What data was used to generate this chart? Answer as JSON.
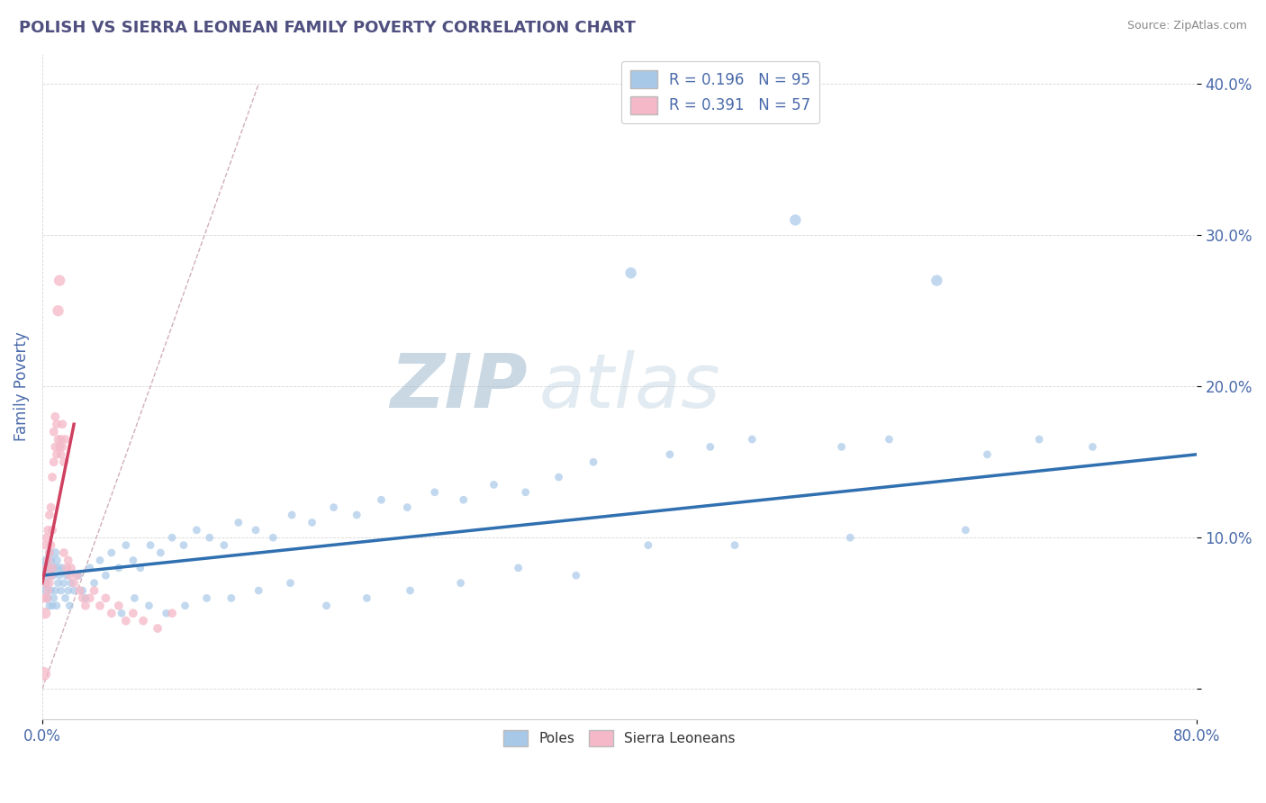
{
  "title": "POLISH VS SIERRA LEONEAN FAMILY POVERTY CORRELATION CHART",
  "source": "Source: ZipAtlas.com",
  "ylabel": "Family Poverty",
  "xlim": [
    0,
    0.8
  ],
  "ylim": [
    -0.02,
    0.42
  ],
  "yticks": [
    0.0,
    0.1,
    0.2,
    0.3,
    0.4
  ],
  "ytick_labels": [
    "",
    "10.0%",
    "20.0%",
    "30.0%",
    "40.0%"
  ],
  "blue_R": 0.196,
  "blue_N": 95,
  "pink_R": 0.391,
  "pink_N": 57,
  "blue_color": "#a8c8e8",
  "pink_color": "#f4b8c8",
  "blue_line_color": "#3070b0",
  "pink_line_color": "#d04060",
  "ref_line_color": "#d0b0b8",
  "title_color": "#505080",
  "axis_color": "#4a6aaa",
  "watermark_zip": "ZIP",
  "watermark_atlas": "atlas",
  "watermark_color": "#c8d8e8",
  "legend_label_blue": "Poles",
  "legend_label_pink": "Sierra Leoneans",
  "blue_x": [
    0.001,
    0.002,
    0.002,
    0.003,
    0.003,
    0.004,
    0.004,
    0.005,
    0.005,
    0.006,
    0.006,
    0.007,
    0.007,
    0.008,
    0.008,
    0.009,
    0.009,
    0.01,
    0.01,
    0.011,
    0.011,
    0.012,
    0.013,
    0.014,
    0.015,
    0.016,
    0.017,
    0.018,
    0.019,
    0.02,
    0.022,
    0.025,
    0.028,
    0.03,
    0.033,
    0.036,
    0.04,
    0.044,
    0.048,
    0.053,
    0.058,
    0.063,
    0.068,
    0.075,
    0.082,
    0.09,
    0.098,
    0.107,
    0.116,
    0.126,
    0.136,
    0.148,
    0.16,
    0.173,
    0.187,
    0.202,
    0.218,
    0.235,
    0.253,
    0.272,
    0.292,
    0.313,
    0.335,
    0.358,
    0.382,
    0.408,
    0.435,
    0.463,
    0.492,
    0.522,
    0.554,
    0.587,
    0.62,
    0.655,
    0.691,
    0.728,
    0.64,
    0.56,
    0.48,
    0.42,
    0.37,
    0.33,
    0.29,
    0.255,
    0.225,
    0.197,
    0.172,
    0.15,
    0.131,
    0.114,
    0.099,
    0.086,
    0.074,
    0.064,
    0.055
  ],
  "blue_y": [
    0.08,
    0.075,
    0.065,
    0.085,
    0.07,
    0.08,
    0.06,
    0.09,
    0.055,
    0.085,
    0.065,
    0.075,
    0.055,
    0.08,
    0.06,
    0.09,
    0.065,
    0.085,
    0.055,
    0.08,
    0.07,
    0.075,
    0.065,
    0.08,
    0.07,
    0.06,
    0.075,
    0.065,
    0.055,
    0.07,
    0.065,
    0.075,
    0.065,
    0.06,
    0.08,
    0.07,
    0.085,
    0.075,
    0.09,
    0.08,
    0.095,
    0.085,
    0.08,
    0.095,
    0.09,
    0.1,
    0.095,
    0.105,
    0.1,
    0.095,
    0.11,
    0.105,
    0.1,
    0.115,
    0.11,
    0.12,
    0.115,
    0.125,
    0.12,
    0.13,
    0.125,
    0.135,
    0.13,
    0.14,
    0.15,
    0.275,
    0.155,
    0.16,
    0.165,
    0.31,
    0.16,
    0.165,
    0.27,
    0.155,
    0.165,
    0.16,
    0.105,
    0.1,
    0.095,
    0.095,
    0.075,
    0.08,
    0.07,
    0.065,
    0.06,
    0.055,
    0.07,
    0.065,
    0.06,
    0.06,
    0.055,
    0.05,
    0.055,
    0.06,
    0.05
  ],
  "blue_sizes": [
    80,
    60,
    50,
    60,
    50,
    50,
    40,
    50,
    40,
    50,
    40,
    50,
    40,
    50,
    40,
    50,
    40,
    50,
    40,
    50,
    40,
    40,
    40,
    40,
    40,
    40,
    40,
    40,
    40,
    40,
    40,
    40,
    40,
    40,
    40,
    40,
    40,
    40,
    40,
    40,
    40,
    40,
    40,
    40,
    40,
    40,
    40,
    40,
    40,
    40,
    40,
    40,
    40,
    40,
    40,
    40,
    40,
    40,
    40,
    40,
    40,
    40,
    40,
    40,
    40,
    80,
    40,
    40,
    40,
    80,
    40,
    40,
    80,
    40,
    40,
    40,
    40,
    40,
    40,
    40,
    40,
    40,
    40,
    40,
    40,
    40,
    40,
    40,
    40,
    40,
    40,
    40,
    40,
    40,
    40
  ],
  "pink_x": [
    0.001,
    0.001,
    0.002,
    0.002,
    0.002,
    0.003,
    0.003,
    0.003,
    0.004,
    0.004,
    0.004,
    0.005,
    0.005,
    0.005,
    0.006,
    0.006,
    0.006,
    0.007,
    0.007,
    0.007,
    0.008,
    0.008,
    0.009,
    0.009,
    0.01,
    0.01,
    0.011,
    0.011,
    0.012,
    0.012,
    0.013,
    0.013,
    0.014,
    0.014,
    0.015,
    0.015,
    0.016,
    0.017,
    0.018,
    0.019,
    0.02,
    0.022,
    0.024,
    0.026,
    0.028,
    0.03,
    0.033,
    0.036,
    0.04,
    0.044,
    0.048,
    0.053,
    0.058,
    0.063,
    0.07,
    0.08,
    0.09
  ],
  "pink_y": [
    0.01,
    0.06,
    0.05,
    0.07,
    0.095,
    0.06,
    0.08,
    0.1,
    0.065,
    0.085,
    0.105,
    0.07,
    0.09,
    0.115,
    0.075,
    0.095,
    0.12,
    0.08,
    0.105,
    0.14,
    0.15,
    0.17,
    0.16,
    0.18,
    0.155,
    0.175,
    0.165,
    0.25,
    0.16,
    0.27,
    0.155,
    0.165,
    0.16,
    0.175,
    0.15,
    0.09,
    0.165,
    0.08,
    0.085,
    0.075,
    0.08,
    0.07,
    0.075,
    0.065,
    0.06,
    0.055,
    0.06,
    0.065,
    0.055,
    0.06,
    0.05,
    0.055,
    0.045,
    0.05,
    0.045,
    0.04,
    0.05
  ],
  "pink_sizes": [
    120,
    50,
    80,
    50,
    50,
    60,
    50,
    50,
    50,
    50,
    50,
    50,
    50,
    50,
    50,
    50,
    50,
    50,
    50,
    50,
    50,
    50,
    50,
    50,
    50,
    50,
    50,
    80,
    50,
    80,
    50,
    50,
    50,
    50,
    50,
    50,
    50,
    50,
    50,
    50,
    50,
    50,
    50,
    50,
    50,
    50,
    50,
    50,
    50,
    50,
    50,
    50,
    50,
    50,
    50,
    50,
    50
  ]
}
